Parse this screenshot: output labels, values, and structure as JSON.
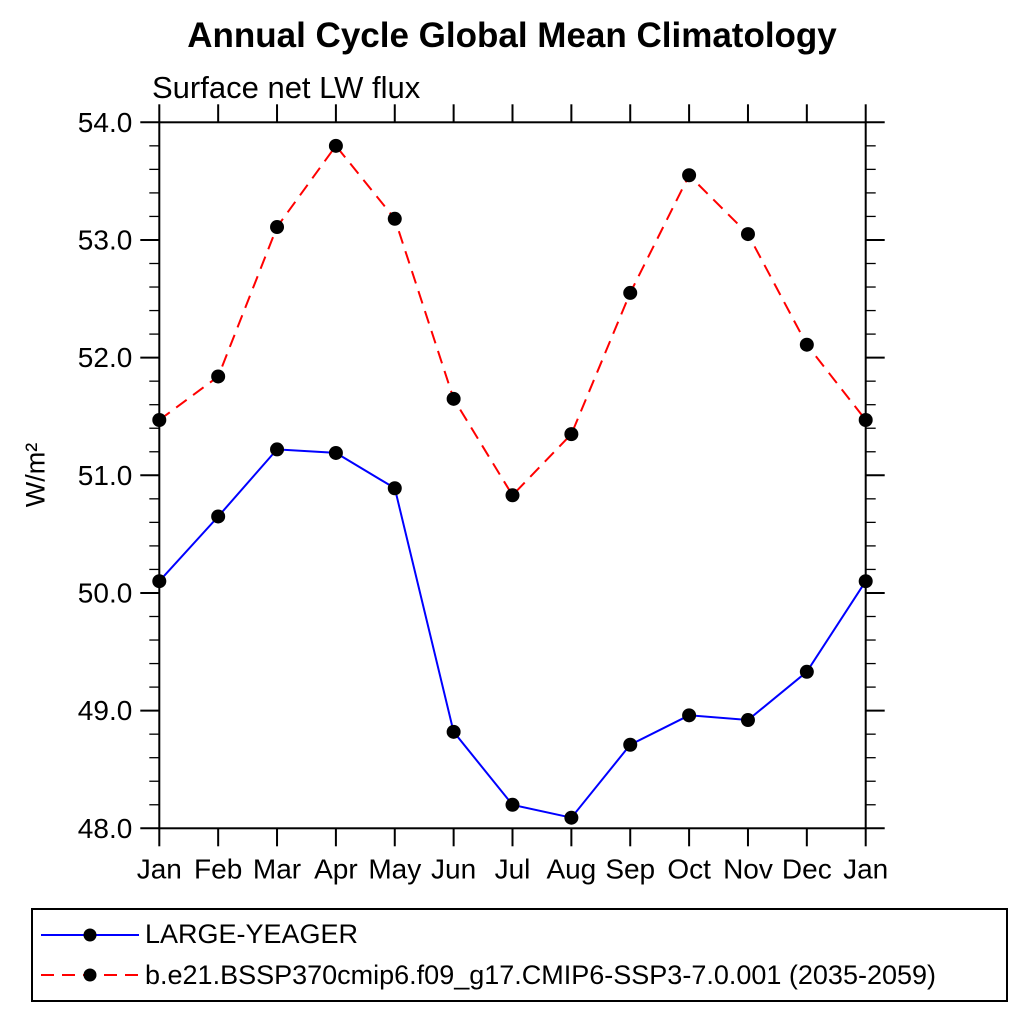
{
  "chart_data": {
    "type": "line",
    "title": "Annual Cycle Global Mean Climatology",
    "subtitle": "Surface net LW flux",
    "ylabel": "W/m²",
    "xlabel": "",
    "categories": [
      "Jan",
      "Feb",
      "Mar",
      "Apr",
      "May",
      "Jun",
      "Jul",
      "Aug",
      "Sep",
      "Oct",
      "Nov",
      "Dec",
      "Jan"
    ],
    "ylim": [
      48.0,
      54.0
    ],
    "ytick_labels": [
      "48.0",
      "49.0",
      "50.0",
      "51.0",
      "52.0",
      "53.0",
      "54.0"
    ],
    "ytick_values": [
      48,
      49,
      50,
      51,
      52,
      53,
      54
    ],
    "y_minor_tick_step": 0.2,
    "grid": false,
    "legend_position": "bottom",
    "axis_color": "#000000",
    "marker_color": "#000000",
    "series": [
      {
        "name": "LARGE-YEAGER",
        "color": "#0000ff",
        "line_style": "solid",
        "marker": "filled-circle",
        "values": [
          50.1,
          50.65,
          51.22,
          51.19,
          50.89,
          48.82,
          48.2,
          48.09,
          48.71,
          48.96,
          48.92,
          49.33,
          50.1
        ]
      },
      {
        "name": "b.e21.BSSP370cmip6.f09_g17.CMIP6-SSP3-7.0.001 (2035-2059)",
        "color": "#ff0000",
        "line_style": "dashed",
        "marker": "filled-circle",
        "values": [
          51.47,
          51.84,
          53.11,
          53.8,
          53.18,
          51.65,
          50.83,
          51.35,
          52.55,
          53.55,
          53.05,
          52.11,
          51.47
        ]
      }
    ]
  }
}
